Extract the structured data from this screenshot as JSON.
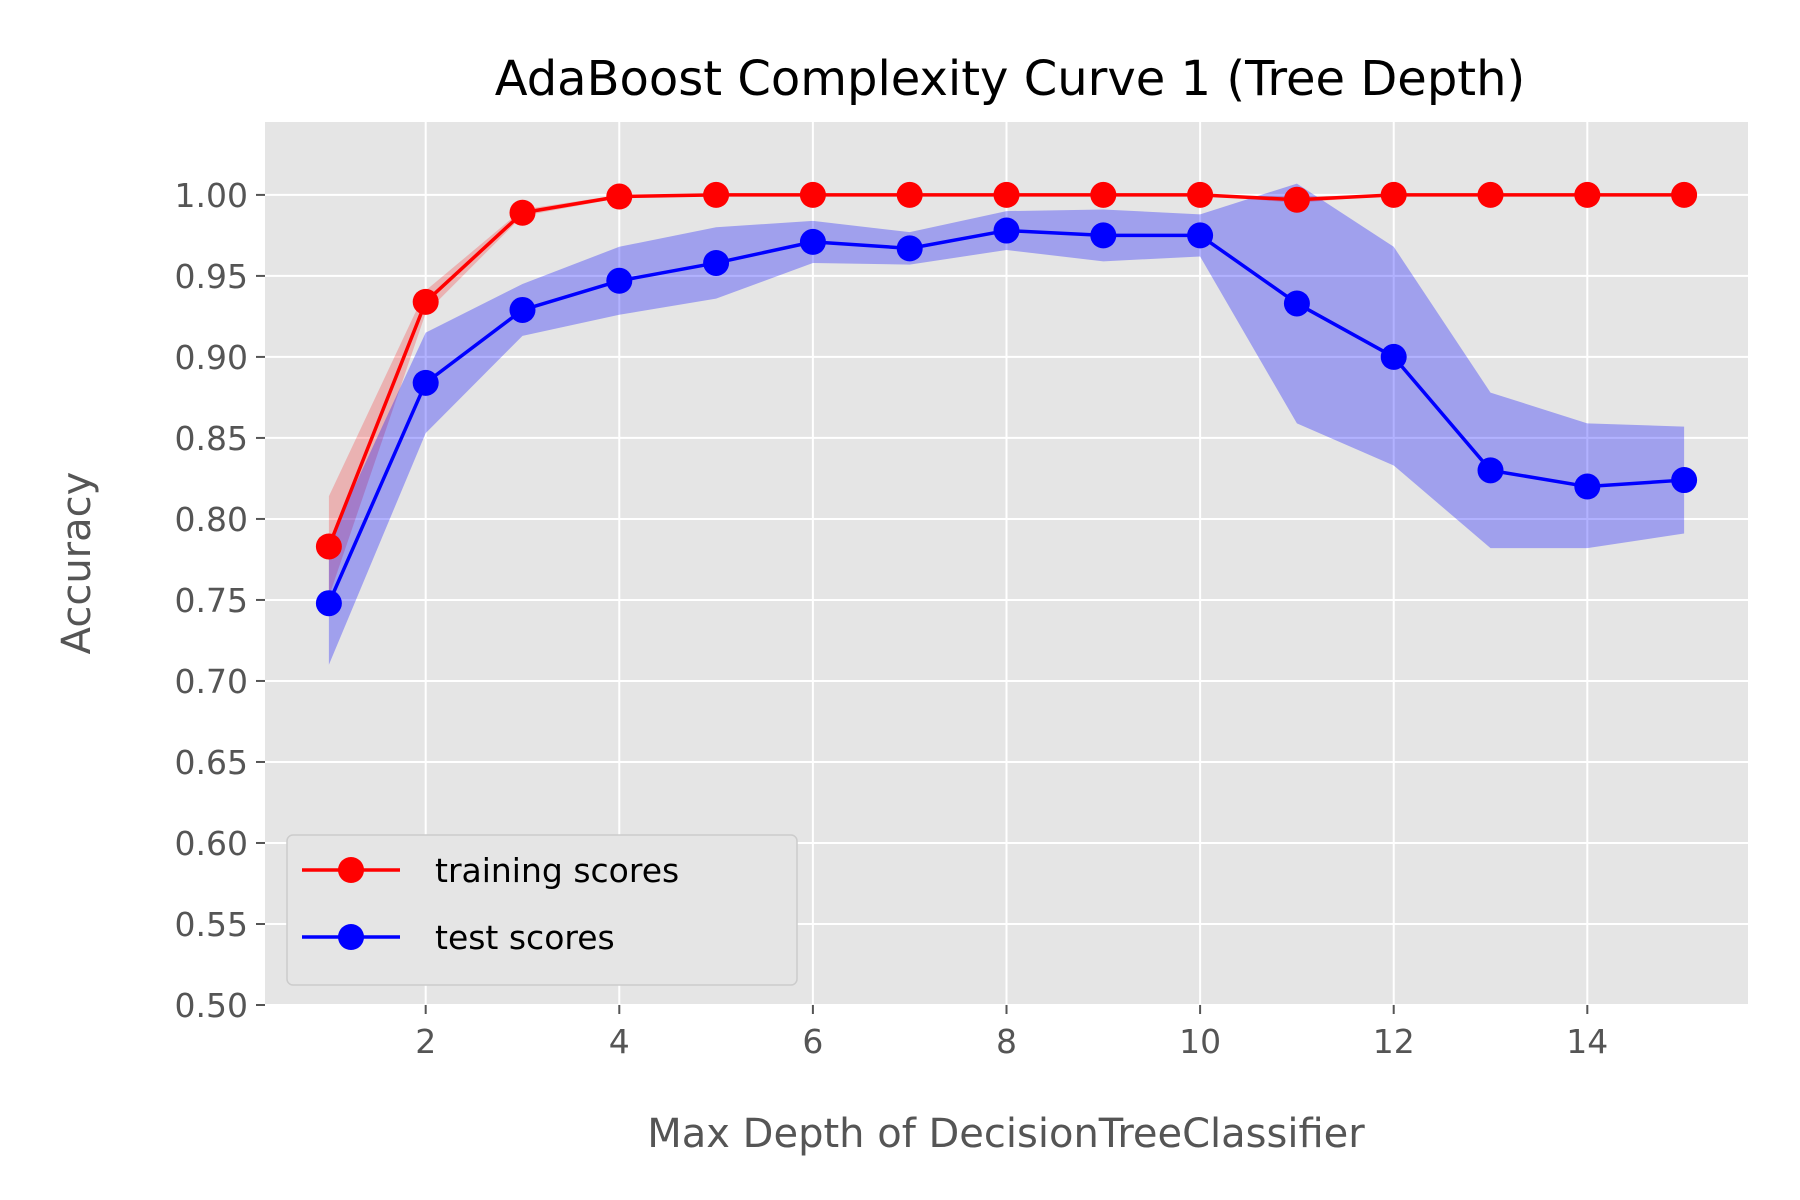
{
  "chart_data": {
    "type": "line",
    "title": "AdaBoost Complexity Curve 1 (Tree Depth)",
    "xlabel": "Max Depth of DecisionTreeClassifier",
    "ylabel": "Accuracy",
    "xlim": [
      0.34,
      15.66
    ],
    "ylim": [
      0.5,
      1.045
    ],
    "xticks": [
      2,
      4,
      6,
      8,
      10,
      12,
      14
    ],
    "xtick_labels": [
      "2",
      "4",
      "6",
      "8",
      "10",
      "12",
      "14"
    ],
    "yticks": [
      0.5,
      0.55,
      0.6,
      0.65,
      0.7,
      0.75,
      0.8,
      0.85,
      0.9,
      0.95,
      1.0
    ],
    "ytick_labels": [
      "0.50",
      "0.55",
      "0.60",
      "0.65",
      "0.70",
      "0.75",
      "0.80",
      "0.85",
      "0.90",
      "0.95",
      "1.00"
    ],
    "grid": true,
    "background": "#e5e5e5",
    "legend_position": "lower-left",
    "x": [
      1,
      2,
      3,
      4,
      5,
      6,
      7,
      8,
      9,
      10,
      11,
      12,
      13,
      14,
      15
    ],
    "series": [
      {
        "name": "training scores",
        "color": "#ff0000",
        "band_color": "#ff0000",
        "values": [
          0.783,
          0.934,
          0.989,
          0.999,
          1.0,
          1.0,
          1.0,
          1.0,
          1.0,
          1.0,
          0.997,
          1.0,
          1.0,
          1.0,
          1.0
        ],
        "lower": [
          0.752,
          0.927,
          0.987,
          0.998,
          1.0,
          1.0,
          1.0,
          1.0,
          1.0,
          1.0,
          0.995,
          1.0,
          1.0,
          1.0,
          1.0
        ],
        "upper": [
          0.814,
          0.941,
          0.991,
          1.0,
          1.0,
          1.0,
          1.0,
          1.0,
          1.0,
          1.0,
          0.999,
          1.0,
          1.0,
          1.0,
          1.0
        ]
      },
      {
        "name": "test scores",
        "color": "#0000ff",
        "band_color": "#0000ff",
        "values": [
          0.748,
          0.884,
          0.929,
          0.947,
          0.958,
          0.971,
          0.967,
          0.978,
          0.975,
          0.975,
          0.933,
          0.9,
          0.83,
          0.82,
          0.824
        ],
        "lower": [
          0.71,
          0.853,
          0.913,
          0.926,
          0.936,
          0.958,
          0.957,
          0.966,
          0.959,
          0.962,
          0.859,
          0.833,
          0.782,
          0.782,
          0.791
        ],
        "upper": [
          0.786,
          0.915,
          0.945,
          0.968,
          0.98,
          0.984,
          0.977,
          0.99,
          0.991,
          0.988,
          1.007,
          0.968,
          0.878,
          0.859,
          0.857
        ]
      }
    ]
  }
}
